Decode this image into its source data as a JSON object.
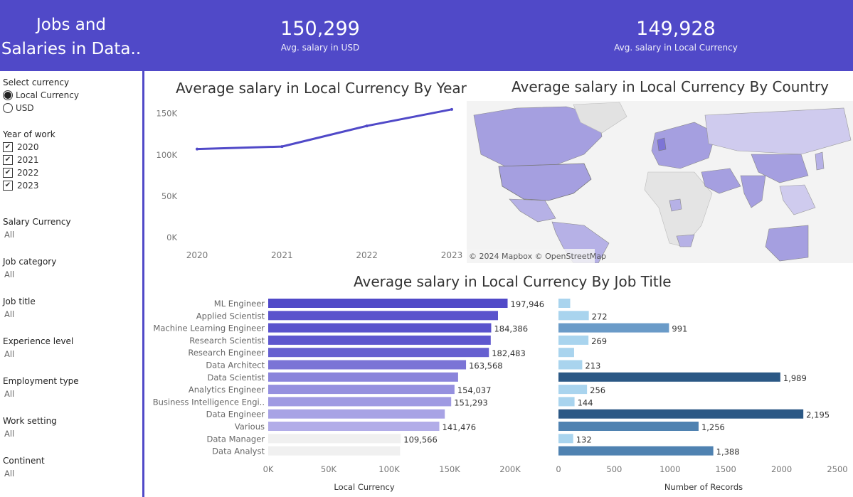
{
  "header": {
    "title_line1": "Jobs and",
    "title_line2": "Salaries in Data..",
    "kpi_usd_value": "150,299",
    "kpi_usd_label": "Avg. salary in USD",
    "kpi_local_value": "149,928",
    "kpi_local_label": "Avg. salary in Local Currency"
  },
  "filters": {
    "currency_label": "Select currency",
    "currency_options": [
      "Local Currency",
      "USD"
    ],
    "currency_selected": "Local Currency",
    "year_label": "Year of work",
    "years": [
      "2020",
      "2021",
      "2022",
      "2023"
    ],
    "salary_currency_label": "Salary Currency",
    "salary_currency_value": "All",
    "job_category_label": "Job category",
    "job_category_value": "All",
    "job_title_label": "Job title",
    "job_title_value": "All",
    "experience_label": "Experience level",
    "experience_value": "All",
    "employment_label": "Employment type",
    "employment_value": "All",
    "work_setting_label": "Work setting",
    "work_setting_value": "All",
    "continent_label": "Continent",
    "continent_value": "All"
  },
  "colors": {
    "accent": "#5049c8",
    "map_land": "#e8e8e8",
    "map_highlight": "#a59fe0"
  },
  "map": {
    "title": "Average salary in Local Currency By Country",
    "attribution": "© 2024 Mapbox © OpenStreetMap"
  },
  "chart_data": [
    {
      "type": "line",
      "title": "Average salary in Local Currency By Year",
      "x": [
        "2020",
        "2021",
        "2022",
        "2023"
      ],
      "y": [
        107000,
        110000,
        135000,
        155000
      ],
      "ylim": [
        0,
        160000
      ],
      "yticks": [
        "0K",
        "50K",
        "100K",
        "150K"
      ],
      "ytick_values": [
        0,
        50000,
        100000,
        150000
      ]
    },
    {
      "type": "bar",
      "orientation": "horizontal",
      "title": "Average salary in Local Currency By Job Title",
      "xlabel": "Local Currency",
      "categories": [
        "ML Engineer",
        "Applied Scientist",
        "Machine Learning Engineer",
        "Research Scientist",
        "Research Engineer",
        "Data Architect",
        "Data Scientist",
        "Analytics Engineer",
        "Business Intelligence Engi..",
        "Data Engineer",
        "Various",
        "Data Manager",
        "Data Analyst"
      ],
      "values": [
        197946,
        190000,
        184386,
        184000,
        182483,
        163568,
        157000,
        154037,
        151293,
        146000,
        141476,
        109566,
        109000
      ],
      "labels": [
        "197,946",
        "",
        "184,386",
        "",
        "182,483",
        "163,568",
        "",
        "154,037",
        "151,293",
        "",
        "141,476",
        "109,566",
        ""
      ],
      "xlim": [
        0,
        200000
      ],
      "xticks": [
        "0K",
        "50K",
        "100K",
        "150K",
        "200K"
      ],
      "xtick_values": [
        0,
        50000,
        100000,
        150000,
        200000
      ]
    },
    {
      "type": "bar",
      "orientation": "horizontal",
      "xlabel": "Number of Records",
      "categories": [
        "ML Engineer",
        "Applied Scientist",
        "Machine Learning Engineer",
        "Research Scientist",
        "Research Engineer",
        "Data Architect",
        "Data Scientist",
        "Analytics Engineer",
        "Business Intelligence Engi..",
        "Data Engineer",
        "Various",
        "Data Manager",
        "Data Analyst"
      ],
      "values": [
        105,
        272,
        991,
        269,
        140,
        213,
        1989,
        256,
        144,
        2195,
        1256,
        132,
        1388
      ],
      "labels": [
        "",
        "272",
        "991",
        "269",
        "",
        "213",
        "1,989",
        "256",
        "144",
        "2,195",
        "1,256",
        "132",
        "1,388"
      ],
      "xlim": [
        0,
        2500
      ],
      "xticks": [
        "0",
        "500",
        "1000",
        "1500",
        "2000",
        "2500"
      ],
      "xtick_values": [
        0,
        500,
        1000,
        1500,
        2000,
        2500
      ]
    }
  ]
}
